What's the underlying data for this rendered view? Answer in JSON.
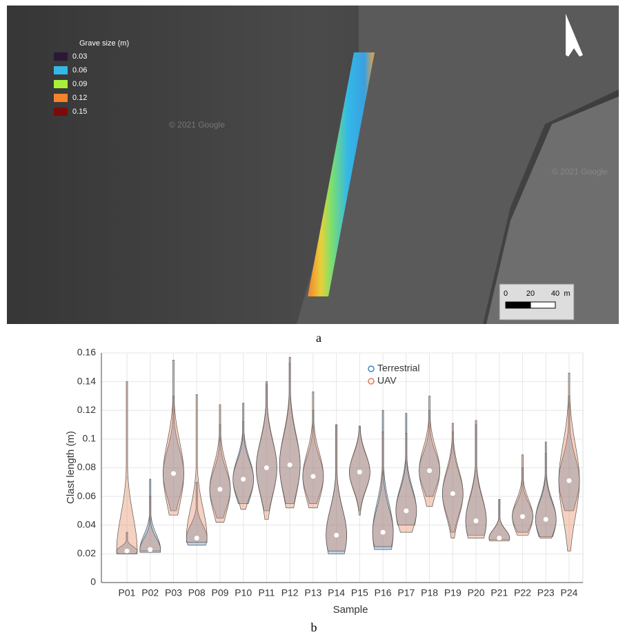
{
  "map": {
    "legend_title": "Grave size (m)",
    "legend": [
      {
        "label": "0.03",
        "color": "#2b1838"
      },
      {
        "label": "0.06",
        "color": "#33b8e8"
      },
      {
        "label": "0.09",
        "color": "#a9f03c"
      },
      {
        "label": "0.12",
        "color": "#f5822c"
      },
      {
        "label": "0.15",
        "color": "#7a0b0b"
      }
    ],
    "watermarks": [
      "© 2021 Google",
      "© 2021 Google"
    ],
    "scale_labels": [
      "0",
      "20",
      "40",
      "m"
    ],
    "caption": "a"
  },
  "chart_data": {
    "type": "violin",
    "ylabel": "Clast length (m)",
    "xlabel": "Sample",
    "caption": "b",
    "categories": [
      "P01",
      "P02",
      "P03",
      "P08",
      "P09",
      "P10",
      "P11",
      "P12",
      "P13",
      "P14",
      "P15",
      "P16",
      "P17",
      "P18",
      "P19",
      "P20",
      "P21",
      "P22",
      "P23",
      "P24"
    ],
    "median": [
      0.022,
      0.023,
      0.076,
      0.031,
      0.065,
      0.072,
      0.08,
      0.082,
      0.074,
      0.033,
      0.077,
      0.035,
      0.05,
      0.078,
      0.062,
      0.043,
      0.031,
      0.046,
      0.044,
      0.071
    ],
    "series": [
      {
        "name": "Terrestrial",
        "color": "#3c84c4",
        "min": [
          0.02,
          0.021,
          0.05,
          0.026,
          0.045,
          0.055,
          0.05,
          0.055,
          0.055,
          0.02,
          0.05,
          0.023,
          0.04,
          0.06,
          0.035,
          0.033,
          0.03,
          0.035,
          0.032,
          0.05
        ],
        "max": [
          0.035,
          0.072,
          0.13,
          0.07,
          0.11,
          0.125,
          0.14,
          0.153,
          0.12,
          0.11,
          0.109,
          0.12,
          0.118,
          0.12,
          0.105,
          0.11,
          0.058,
          0.08,
          0.098,
          0.13
        ]
      },
      {
        "name": "UAV",
        "color": "#e07a4e",
        "min": [
          0.02,
          0.022,
          0.047,
          0.028,
          0.042,
          0.051,
          0.044,
          0.052,
          0.052,
          0.022,
          0.047,
          0.025,
          0.035,
          0.053,
          0.031,
          0.031,
          0.029,
          0.033,
          0.031,
          0.022
        ],
        "max": [
          0.14,
          0.06,
          0.155,
          0.131,
          0.124,
          0.112,
          0.138,
          0.157,
          0.133,
          0.11,
          0.109,
          0.105,
          0.104,
          0.13,
          0.111,
          0.113,
          0.058,
          0.089,
          0.09,
          0.146
        ]
      }
    ],
    "ylim": [
      0,
      0.16
    ],
    "yticks": [
      0,
      0.02,
      0.04,
      0.06,
      0.08,
      0.1,
      0.12,
      0.14,
      0.16
    ],
    "grid": true,
    "legend": "top"
  }
}
